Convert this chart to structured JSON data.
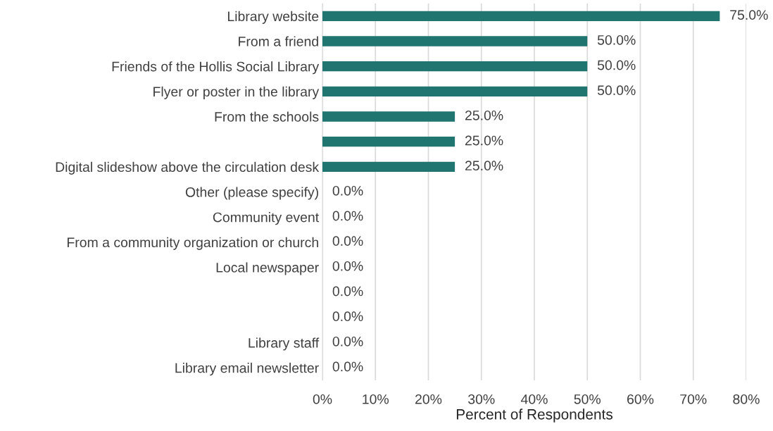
{
  "chart_data": {
    "type": "bar",
    "orientation": "horizontal",
    "xlabel": "Percent of Respondents",
    "categories": [
      "Library website",
      "From a friend",
      "Friends of the Hollis Social Library",
      "Flyer or poster in the library",
      "From the schools",
      null,
      "Digital slideshow above the circulation desk",
      "Other (please specify)",
      "Community event",
      "From a community organization or church",
      "Local newspaper",
      null,
      null,
      "Library staff",
      "Library email newsletter"
    ],
    "values": [
      75,
      50,
      50,
      50,
      25,
      25,
      25,
      0,
      0,
      0,
      0,
      0,
      0,
      0,
      0
    ],
    "value_labels": [
      "75.0%",
      "50.0%",
      "50.0%",
      "50.0%",
      "25.0%",
      "25.0%",
      "25.0%",
      "0.0%",
      "0.0%",
      "0.0%",
      "0.0%",
      "0.0%",
      "0.0%",
      "0.0%",
      "0.0%"
    ],
    "color": "#217571",
    "xlim": [
      0,
      80
    ],
    "xticks": [
      {
        "value": 0,
        "label": "0%"
      },
      {
        "value": 10,
        "label": "10%"
      },
      {
        "value": 20,
        "label": "20%"
      },
      {
        "value": 30,
        "label": "30%"
      },
      {
        "value": 40,
        "label": "40%"
      },
      {
        "value": 50,
        "label": "50%"
      },
      {
        "value": 60,
        "label": "60%"
      },
      {
        "value": 70,
        "label": "70%"
      },
      {
        "value": 80,
        "label": "80%"
      }
    ],
    "grid": "x"
  }
}
